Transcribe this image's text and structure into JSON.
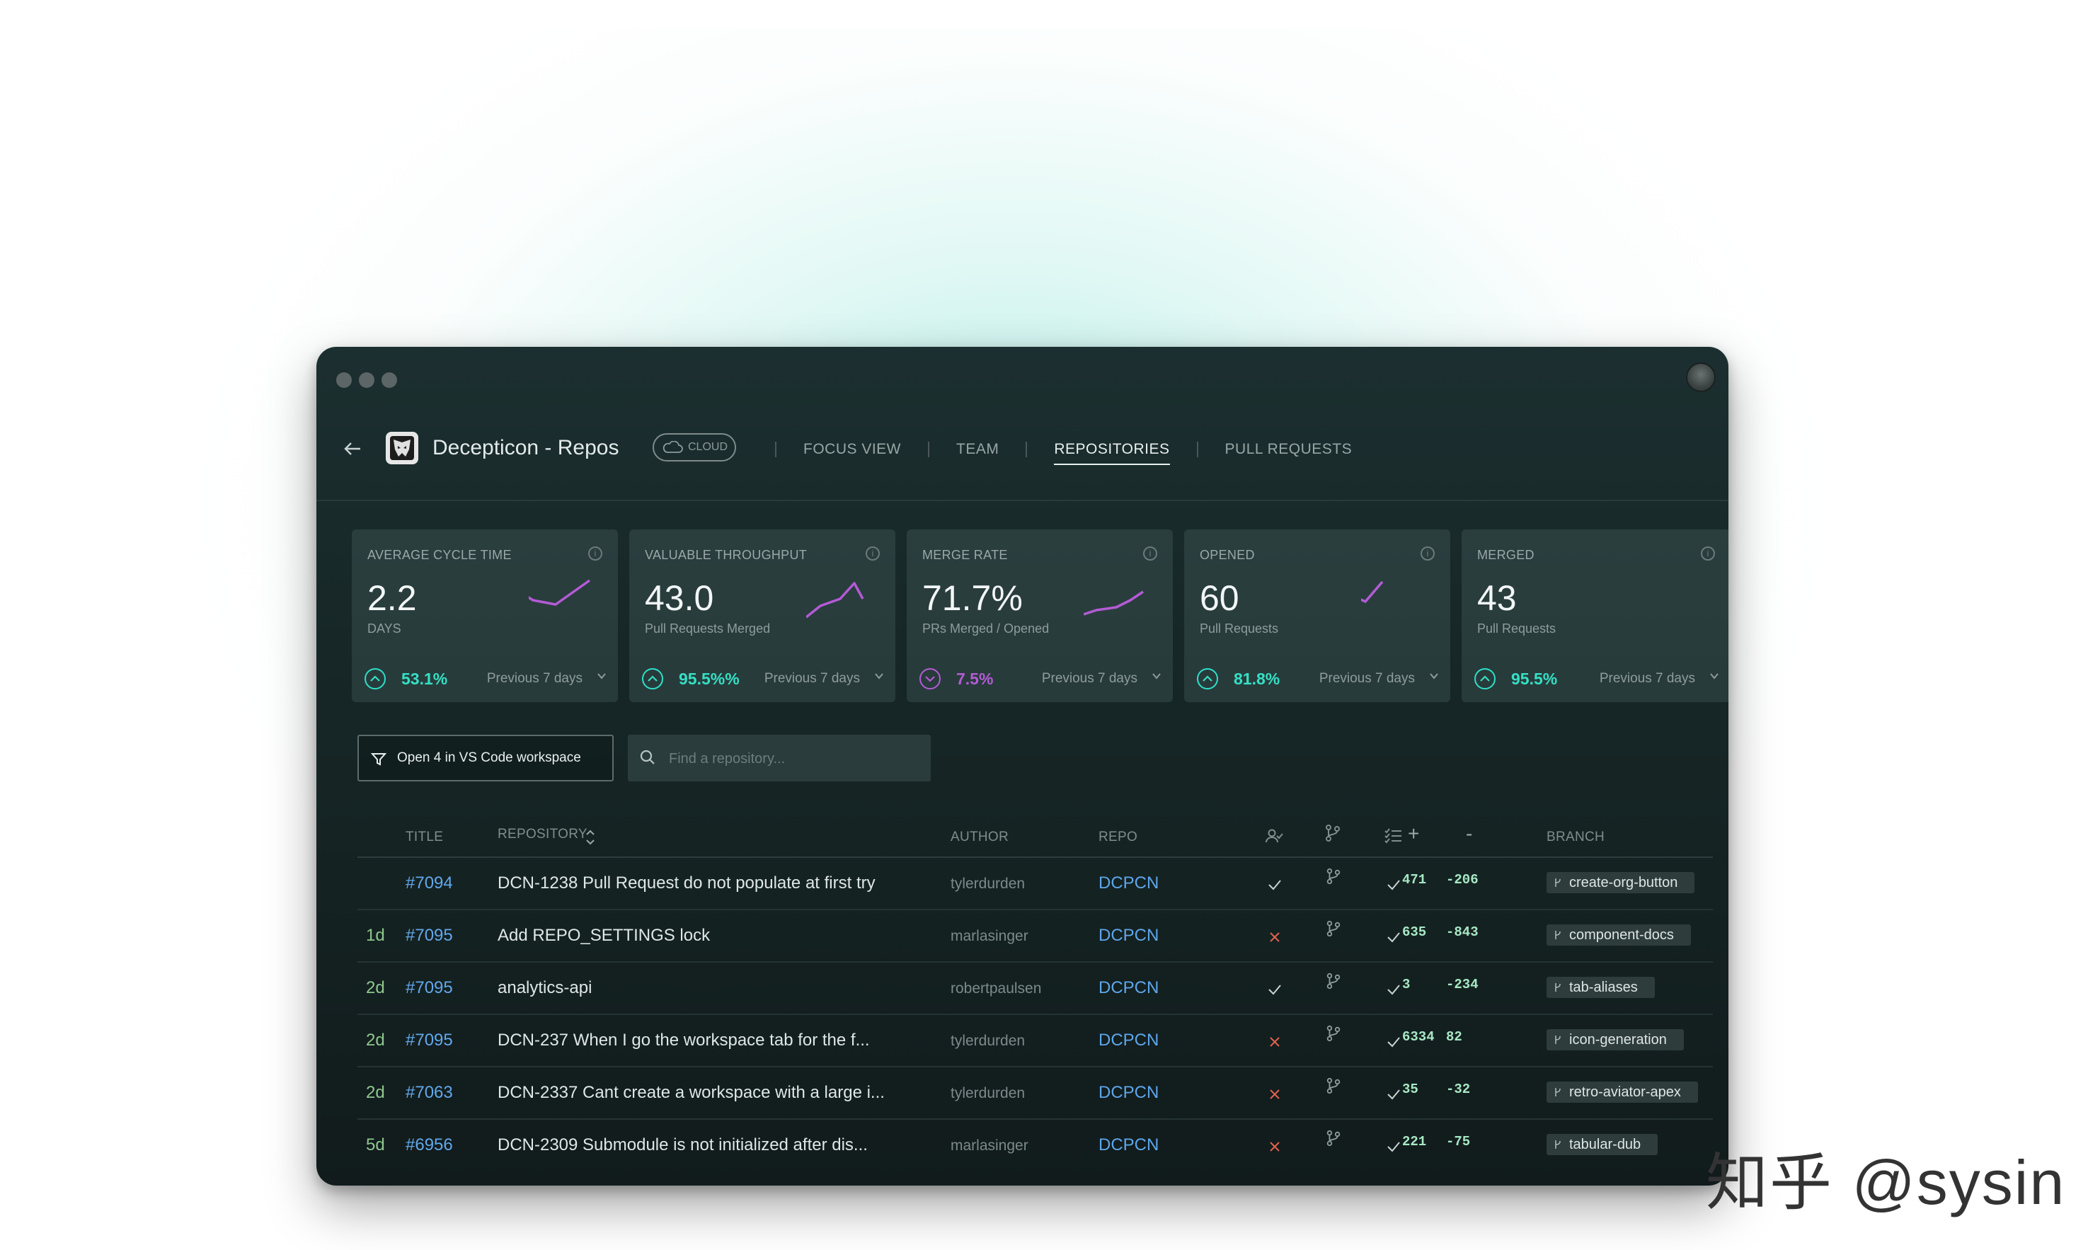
{
  "app": {
    "title": "Decepticon - Repos",
    "badge": "CLOUD",
    "back_icon": "arrow-left-icon",
    "logo_icon": "decepticon-logo-icon"
  },
  "nav": {
    "tabs": [
      {
        "label": "FOCUS VIEW",
        "active": false
      },
      {
        "label": "TEAM",
        "active": false
      },
      {
        "label": "REPOSITORIES",
        "active": true
      },
      {
        "label": "PULL REQUESTS",
        "active": false
      }
    ]
  },
  "metrics": [
    {
      "label": "AVERAGE CYCLE TIME",
      "value": "2.2",
      "sub": "DAYS",
      "trend": "53.1%",
      "trend_dir": "up",
      "trend_color": "#35e0c4",
      "period": "Previous 7 days"
    },
    {
      "label": "VALUABLE THROUGHPUT",
      "value": "43.0",
      "sub": "Pull Requests Merged",
      "trend": "95.5%%",
      "trend_dir": "up",
      "trend_color": "#35e0c4",
      "period": "Previous 7 days"
    },
    {
      "label": "MERGE RATE",
      "value": "71.7%",
      "sub": "PRs Merged / Opened",
      "trend": "7.5%",
      "trend_dir": "down",
      "trend_color": "#b45bd6",
      "period": "Previous 7 days"
    },
    {
      "label": "OPENED",
      "value": "60",
      "sub": "Pull Requests",
      "trend": "81.8%",
      "trend_dir": "up",
      "trend_color": "#35e0c4",
      "period": "Previous 7 days"
    },
    {
      "label": "MERGED",
      "value": "43",
      "sub": "Pull Requests",
      "trend": "95.5%",
      "trend_dir": "up",
      "trend_color": "#35e0c4",
      "period": "Previous 7 days"
    }
  ],
  "colors": {
    "accent_teal": "#35e0c4",
    "accent_purple": "#b45bd6",
    "link_blue": "#5ea6ea",
    "age_green": "#8fc78f"
  },
  "actions": {
    "vs_button": "Open 4 in VS Code workspace",
    "search_placeholder": "Find a repository..."
  },
  "table": {
    "headers": {
      "title": "TITLE",
      "repository": "REPOSITORY",
      "author": "AUTHOR",
      "repo": "REPO",
      "add": "+",
      "del": "-",
      "branch": "BRANCH"
    },
    "rows": [
      {
        "age": "",
        "num": "#7094",
        "title": "DCN-1238 Pull Request  do not populate at first try",
        "author": "tylerdurden",
        "repo": "DCPCN",
        "reviewed": true,
        "checks": true,
        "add": "471",
        "del": "-206",
        "branch": "create-org-button"
      },
      {
        "age": "1d",
        "num": "#7095",
        "title": "Add REPO_SETTINGS lock",
        "author": "marlasinger",
        "repo": "DCPCN",
        "reviewed": false,
        "checks": true,
        "add": "635",
        "del": "-843",
        "branch": "component-docs"
      },
      {
        "age": "2d",
        "num": "#7095",
        "title": "analytics-api",
        "author": "robertpaulsen",
        "repo": "DCPCN",
        "reviewed": true,
        "checks": true,
        "add": "3",
        "del": "-234",
        "branch": "tab-aliases"
      },
      {
        "age": "2d",
        "num": "#7095",
        "title": "DCN-237 When I go the workspace tab for the f...",
        "author": "tylerdurden",
        "repo": "DCPCN",
        "reviewed": false,
        "checks": true,
        "add": "6334",
        "del": "82",
        "branch": "icon-generation"
      },
      {
        "age": "2d",
        "num": "#7063",
        "title": "DCN-2337 Cant create a workspace with a large i...",
        "author": "tylerdurden",
        "repo": "DCPCN",
        "reviewed": false,
        "checks": true,
        "add": "35",
        "del": "-32",
        "branch": "retro-aviator-apex"
      },
      {
        "age": "5d",
        "num": "#6956",
        "title": "DCN-2309 Submodule is not initialized after dis...",
        "author": "marlasinger",
        "repo": "DCPCN",
        "reviewed": false,
        "checks": true,
        "add": "221",
        "del": "-75",
        "branch": "tabular-dub"
      }
    ]
  },
  "watermark": {
    "zh": "知乎",
    "handle": "@sysin"
  }
}
